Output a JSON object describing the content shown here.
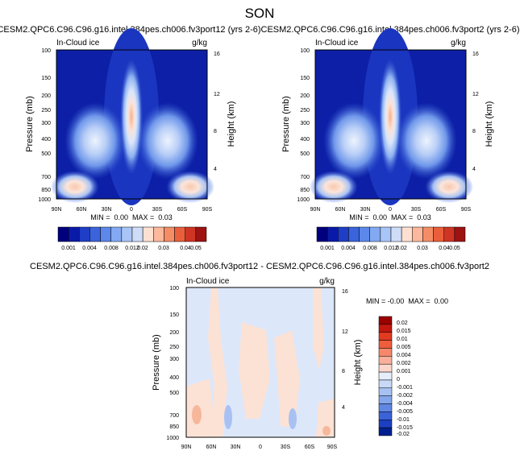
{
  "page": {
    "season": "SON"
  },
  "colors": {
    "label_bar": [
      "#00007f",
      "#0a1aa8",
      "#1f3ec6",
      "#3a63dc",
      "#5b88ea",
      "#82a9f2",
      "#a8c5f7",
      "#cfdcf7",
      "#fde0d2",
      "#fbb89c",
      "#f48d66",
      "#ea5f3b",
      "#cf3524",
      "#9e1212"
    ],
    "diff_bar": [
      "#9b0000",
      "#c2170f",
      "#e03a1f",
      "#ef5d3c",
      "#f6876a",
      "#f9af9a",
      "#fcd6cb",
      "#e6eefb",
      "#c7d9f6",
      "#a6c1f2",
      "#83a6ec",
      "#5f87e3",
      "#3b63d8",
      "#1d3fc2",
      "#001f8f"
    ]
  },
  "chart_data": [
    {
      "type": "heatmap",
      "title": "CESM2.QPC6.C96.C96.g16.intel.384pes.ch006.fv3port12 (yrs 2-6)",
      "left_label": "In-Cloud ice",
      "units": "g/kg",
      "xlabel": "",
      "ylabel": "Pressure (mb)",
      "ylabel_right": "Height (km)",
      "x_ticks": [
        "90N",
        "60N",
        "30N",
        "0",
        "30S",
        "60S",
        "90S"
      ],
      "y_ticks": [
        "100",
        "150",
        "200",
        "250",
        "300",
        "400",
        "500",
        "700",
        "850",
        "1000"
      ],
      "y2_ticks": [
        "16",
        "12",
        "8",
        "4"
      ],
      "stats": "MIN =  0.00  MAX =  0.03",
      "colorbar_labels": [
        "0.001",
        "0.004",
        "0.008",
        "0.012",
        "0.02",
        "0.03",
        "0.04",
        "0.05"
      ],
      "colorbar_levels": [
        0.001,
        0.002,
        0.004,
        0.006,
        0.008,
        0.01,
        0.012,
        0.015,
        0.02,
        0.025,
        0.03,
        0.035,
        0.04,
        0.05
      ],
      "min": 0.0,
      "max": 0.03
    },
    {
      "type": "heatmap",
      "title": "CESM2.QPC6.C96.C96.g16.intel.384pes.ch006.fv3port2 (yrs 2-6)",
      "left_label": "In-Cloud ice",
      "units": "g/kg",
      "xlabel": "",
      "ylabel": "Pressure (mb)",
      "ylabel_right": "Height (km)",
      "x_ticks": [
        "90N",
        "60N",
        "30N",
        "0",
        "30S",
        "60S",
        "90S"
      ],
      "y_ticks": [
        "100",
        "150",
        "200",
        "250",
        "300",
        "400",
        "500",
        "700",
        "850",
        "1000"
      ],
      "y2_ticks": [
        "16",
        "12",
        "8",
        "4"
      ],
      "stats": "MIN =  0.00  MAX =  0.03",
      "colorbar_labels": [
        "0.001",
        "0.004",
        "0.008",
        "0.012",
        "0.02",
        "0.03",
        "0.04",
        "0.05"
      ],
      "colorbar_levels": [
        0.001,
        0.002,
        0.004,
        0.006,
        0.008,
        0.01,
        0.012,
        0.015,
        0.02,
        0.025,
        0.03,
        0.035,
        0.04,
        0.05
      ],
      "min": 0.0,
      "max": 0.03
    },
    {
      "type": "heatmap",
      "title": "CESM2.QPC6.C96.C96.g16.intel.384pes.ch006.fv3port12 - CESM2.QPC6.C96.C96.g16.intel.384pes.ch006.fv3port2",
      "left_label": "In-Cloud ice",
      "units": "g/kg",
      "xlabel": "",
      "ylabel": "Pressure (mb)",
      "ylabel_right": "Height (km)",
      "x_ticks": [
        "90N",
        "60N",
        "30N",
        "0",
        "30S",
        "60S",
        "90S"
      ],
      "y_ticks": [
        "100",
        "150",
        "200",
        "250",
        "300",
        "400",
        "500",
        "700",
        "850",
        "1000"
      ],
      "y2_ticks": [
        "16",
        "12",
        "8",
        "4"
      ],
      "stats": "MIN = -0.00  MAX =  0.00",
      "colorbar_labels": [
        "0.02",
        "0.015",
        "0.01",
        "0.005",
        "0.004",
        "0.002",
        "0.001",
        "0",
        "-0.001",
        "-0.002",
        "-0.004",
        "-0.005",
        "-0.01",
        "-0.015",
        "-0.02"
      ],
      "min": -0.0,
      "max": 0.0
    }
  ]
}
